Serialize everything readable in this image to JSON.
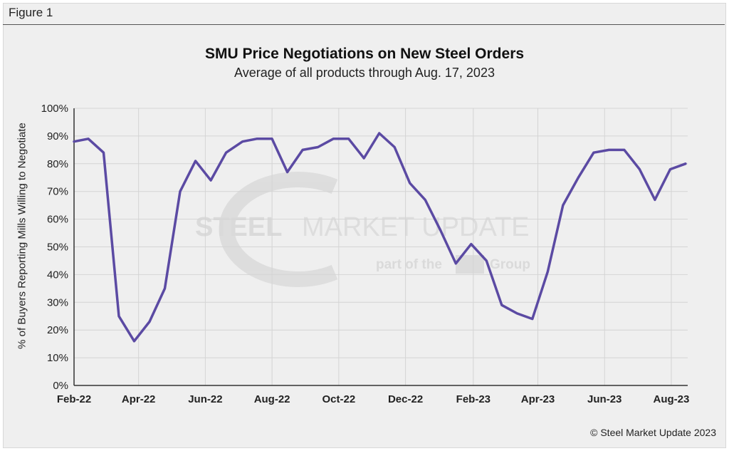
{
  "figure_label": "Figure 1",
  "credit": "© Steel Market Update 2023",
  "watermark": {
    "line1_bold": "STEEL",
    "line1_rest": "MARKET UPDATE",
    "line2_left": "part of the",
    "line2_right": "Group"
  },
  "colors": {
    "line": "#5b4aa3",
    "grid": "#d4d4d4",
    "background": "#efefef"
  },
  "chart_data": {
    "type": "line",
    "title": "SMU Price Negotiations on New Steel Orders",
    "subtitle": "Average of all products through Aug. 17, 2023",
    "ylabel": "% of Buyers Reporting Mills Willing to Negotiate",
    "xlabel": "",
    "ylim": [
      0,
      100
    ],
    "yticks": [
      "0%",
      "10%",
      "20%",
      "30%",
      "40%",
      "50%",
      "60%",
      "70%",
      "80%",
      "90%",
      "100%"
    ],
    "xticks": [
      "Feb-22",
      "Apr-22",
      "Jun-22",
      "Aug-22",
      "Oct-22",
      "Dec-22",
      "Feb-23",
      "Apr-23",
      "Jun-23",
      "Aug-23"
    ],
    "grid": true,
    "legend": "none",
    "series": [
      {
        "x": [
          "2022-02-01",
          "2022-02-14",
          "2022-02-28",
          "2022-03-14",
          "2022-03-28",
          "2022-04-11",
          "2022-04-25",
          "2022-05-09",
          "2022-05-23",
          "2022-06-06",
          "2022-06-20",
          "2022-07-05",
          "2022-07-18",
          "2022-08-01",
          "2022-08-15",
          "2022-08-29",
          "2022-09-12",
          "2022-09-26",
          "2022-10-10",
          "2022-10-24",
          "2022-11-07",
          "2022-11-21",
          "2022-12-05",
          "2022-12-19",
          "2023-01-02",
          "2023-01-16",
          "2023-01-30",
          "2023-02-13",
          "2023-02-27",
          "2023-03-13",
          "2023-03-27",
          "2023-04-10",
          "2023-04-24",
          "2023-05-08",
          "2023-05-22",
          "2023-06-05",
          "2023-06-19",
          "2023-07-03",
          "2023-07-17",
          "2023-07-31",
          "2023-08-14"
        ],
        "values": [
          88,
          89,
          84,
          25,
          16,
          23,
          35,
          70,
          81,
          74,
          84,
          88,
          89,
          89,
          77,
          85,
          86,
          89,
          89,
          82,
          91,
          86,
          73,
          67,
          56,
          44,
          51,
          45,
          29,
          26,
          24,
          41,
          65,
          75,
          84,
          85,
          85,
          78,
          67,
          78,
          80
        ]
      }
    ]
  }
}
